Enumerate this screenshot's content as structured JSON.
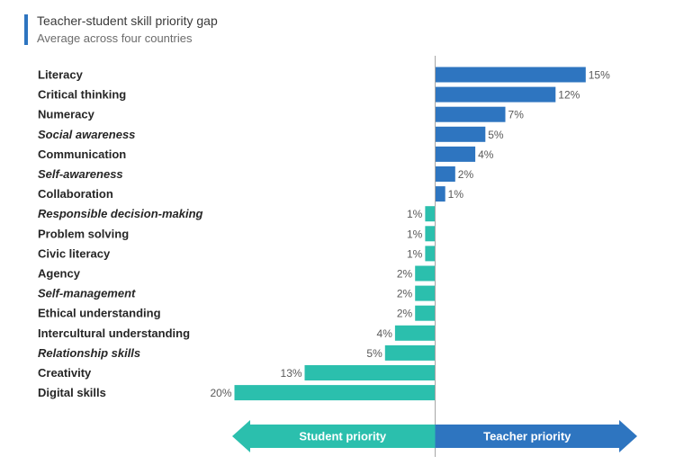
{
  "chart_data": {
    "type": "bar",
    "orientation": "horizontal-diverging",
    "title": "Teacher-student skill priority gap",
    "subtitle": "Average across four countries",
    "unit": "%",
    "categories": [
      {
        "label": "Literacy",
        "value": 15,
        "italic": false
      },
      {
        "label": "Critical thinking",
        "value": 12,
        "italic": false
      },
      {
        "label": "Numeracy",
        "value": 7,
        "italic": false
      },
      {
        "label": "Social awareness",
        "value": 5,
        "italic": true
      },
      {
        "label": "Communication",
        "value": 4,
        "italic": false
      },
      {
        "label": "Self-awareness",
        "value": 2,
        "italic": true
      },
      {
        "label": "Collaboration",
        "value": 1,
        "italic": false
      },
      {
        "label": "Responsible decision-making",
        "value": -1,
        "italic": true
      },
      {
        "label": "Problem solving",
        "value": -1,
        "italic": false
      },
      {
        "label": "Civic literacy",
        "value": -1,
        "italic": false
      },
      {
        "label": "Agency",
        "value": -2,
        "italic": false
      },
      {
        "label": "Self-management",
        "value": -2,
        "italic": true
      },
      {
        "label": "Ethical understanding",
        "value": -2,
        "italic": false
      },
      {
        "label": "Intercultural understanding",
        "value": -4,
        "italic": false
      },
      {
        "label": "Relationship skills",
        "value": -5,
        "italic": true
      },
      {
        "label": "Creativity",
        "value": -13,
        "italic": false
      },
      {
        "label": "Digital skills",
        "value": -20,
        "italic": false
      }
    ],
    "value_labels": [
      "15%",
      "12%",
      "7%",
      "5%",
      "4%",
      "2%",
      "1%",
      "1%",
      "1%",
      "1%",
      "2%",
      "2%",
      "2%",
      "4%",
      "5%",
      "13%",
      "20%"
    ],
    "xlim": [
      -20,
      15
    ],
    "negative_direction_label": "Student priority",
    "positive_direction_label": "Teacher priority",
    "colors": {
      "teacher": "#2e75c0",
      "student": "#2bbfad",
      "axis": "#a6a6a6",
      "accent": "#2e75c0"
    }
  }
}
